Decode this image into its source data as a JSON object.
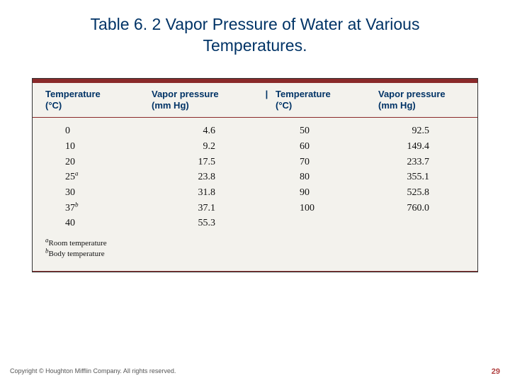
{
  "title": "Table 6. 2   Vapor Pressure of Water at Various Temperatures.",
  "headers": {
    "temp1_line1": "Temperature",
    "temp1_line2": "(°C)",
    "press1_line1": "Vapor pressure",
    "press1_line2": "(mm Hg)",
    "temp2_line1": "Temperature",
    "temp2_line2": "(°C)",
    "press2_line1": "Vapor pressure",
    "press2_line2": "(mm Hg)"
  },
  "rows": [
    {
      "t1": "0",
      "sup1": "",
      "p1": "4.6",
      "t2": "50",
      "p2": "92.5"
    },
    {
      "t1": "10",
      "sup1": "",
      "p1": "9.2",
      "t2": "60",
      "p2": "149.4"
    },
    {
      "t1": "20",
      "sup1": "",
      "p1": "17.5",
      "t2": "70",
      "p2": "233.7"
    },
    {
      "t1": "25",
      "sup1": "a",
      "p1": "23.8",
      "t2": "80",
      "p2": "355.1"
    },
    {
      "t1": "30",
      "sup1": "",
      "p1": "31.8",
      "t2": "90",
      "p2": "525.8"
    },
    {
      "t1": "37",
      "sup1": "b",
      "p1": "37.1",
      "t2": "100",
      "p2": "760.0"
    },
    {
      "t1": "40",
      "sup1": "",
      "p1": "55.3",
      "t2": "",
      "p2": ""
    }
  ],
  "footnotes": {
    "a_sup": "a",
    "a_text": "Room temperature",
    "b_sup": "b",
    "b_text": "Body temperature"
  },
  "copyright": "Copyright © Houghton Mifflin Company. All rights reserved.",
  "pagenum": "29",
  "style": {
    "title_color": "#003366",
    "header_color": "#003366",
    "rule_color": "#8a2a2a",
    "table_bg": "#f3f2ed",
    "body_font": "Georgia, 'Times New Roman', serif",
    "header_font": "Arial, Helvetica, sans-serif",
    "pagenum_color": "#b04040",
    "copyright_color": "#555555"
  }
}
